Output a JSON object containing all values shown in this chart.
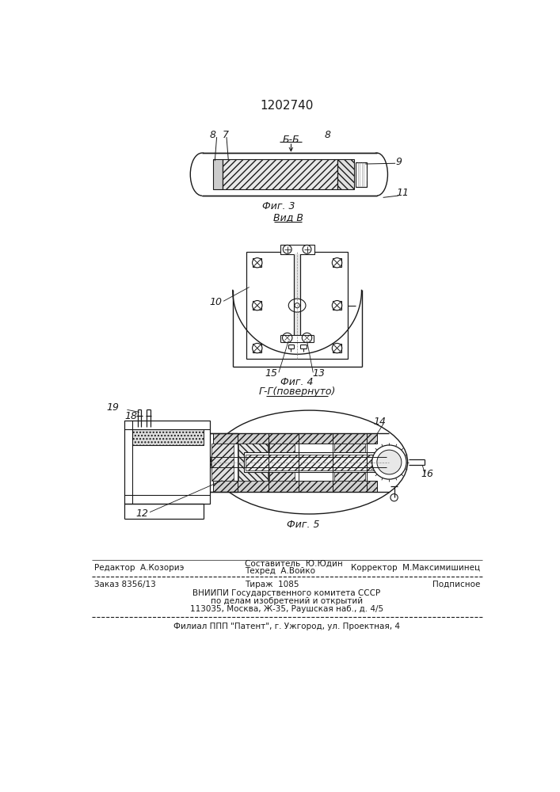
{
  "title": "1202740",
  "bg_color": "#ffffff",
  "fig3_label": "Фиг. 3",
  "fig4_label": "Фиг. 4",
  "fig5_label": "Фиг. 5",
  "vidB_label": "Вид В",
  "gG_label": "Г-Г(повернуто)",
  "bb_label": "Б-Б",
  "line_color": "#1a1a1a",
  "text_color": "#1a1a1a"
}
